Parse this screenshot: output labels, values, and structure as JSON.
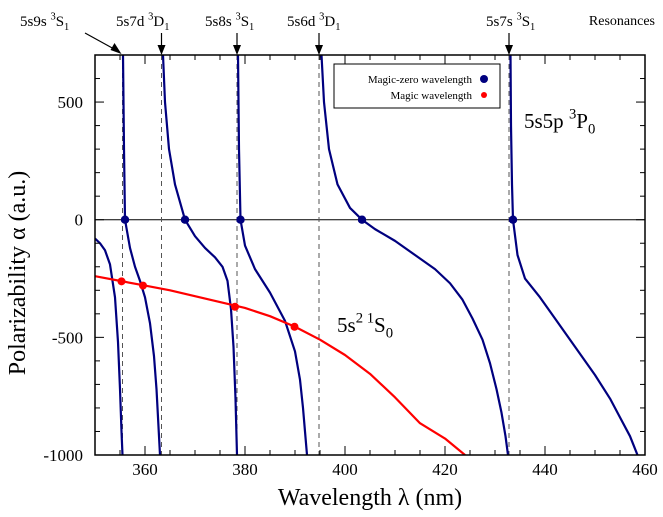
{
  "chart_data": {
    "type": "line",
    "xlabel": "Wavelength  λ (nm)",
    "ylabel": "Polarizability α (a.u.)",
    "xlim": [
      350,
      460
    ],
    "ylim": [
      -1000,
      700
    ],
    "xticks": [
      360,
      380,
      400,
      420,
      440,
      460
    ],
    "yticks": [
      -1000,
      -500,
      0,
      500
    ],
    "grid": false,
    "legend_position": "top-center",
    "legend": [
      {
        "label": "Magic-zero wavelength",
        "color": "#00007f",
        "marker": "circle"
      },
      {
        "label": "Magic wavelength",
        "color": "#ff0000",
        "marker": "circle"
      }
    ],
    "resonances_label": "Resonances",
    "resonances": [
      {
        "wavelength": 355.5,
        "label": "5s9s ³S₁",
        "base": "5s9s ",
        "sup": "3",
        "letter": "S",
        "sub": "1"
      },
      {
        "wavelength": 363.3,
        "label": "5s7d ³D₁",
        "base": "5s7d ",
        "sup": "3",
        "letter": "D",
        "sub": "1"
      },
      {
        "wavelength": 378.4,
        "label": "5s8s ³S₁",
        "base": "5s8s ",
        "sup": "3",
        "letter": "S",
        "sub": "1"
      },
      {
        "wavelength": 394.8,
        "label": "5s6d ³D₁",
        "base": "5s6d ",
        "sup": "3",
        "letter": "D",
        "sub": "1"
      },
      {
        "wavelength": 432.8,
        "label": "5s7s ³S₁",
        "base": "5s7s ",
        "sup": "3",
        "letter": "S",
        "sub": "1"
      }
    ],
    "series": [
      {
        "name": "5s5p ³P₀",
        "label_parts": {
          "base": "5s5p ",
          "sup": "3",
          "letter": "P",
          "sub": "0"
        },
        "color": "#00007f",
        "segments": [
          {
            "x": [
              350,
              351,
              352,
              353,
              354,
              354.6,
              355.0,
              355.3,
              355.5
            ],
            "y": [
              -80,
              -100,
              -130,
              -190,
              -330,
              -520,
              -720,
              -900,
              -1000
            ]
          },
          {
            "x": [
              355.6,
              355.8,
              356.0,
              356.5,
              357,
              358,
              359,
              360,
              361,
              361.8,
              362.3,
              362.7,
              363.0
            ],
            "y": [
              700,
              300,
              0,
              -60,
              -120,
              -200,
              -260,
              -330,
              -440,
              -580,
              -720,
              -880,
              -1000
            ]
          },
          {
            "x": [
              363.6,
              364.0,
              364.8,
              366,
              368,
              370,
              372,
              374,
              375.5,
              376.5,
              377.2,
              377.7,
              378.1,
              378.4
            ],
            "y": [
              700,
              500,
              300,
              150,
              0,
              -70,
              -120,
              -160,
              -200,
              -260,
              -380,
              -540,
              -760,
              -1000
            ]
          },
          {
            "x": [
              378.6,
              378.8,
              379.1,
              380,
              382,
              385,
              388,
              390,
              391,
              391.6,
              392.0,
              392.4
            ],
            "y": [
              700,
              300,
              0,
              -110,
              -210,
              -310,
              -430,
              -560,
              -680,
              -800,
              -900,
              -1000
            ]
          },
          {
            "x": [
              395.3,
              395.8,
              396.8,
              398.5,
              401,
              403.4,
              406,
              410,
              414,
              418,
              421,
              423.5,
              425.5,
              427.5,
              429,
              430.3,
              431.3,
              432.1,
              432.6
            ],
            "y": [
              700,
              500,
              300,
              150,
              50,
              0,
              -40,
              -90,
              -150,
              -210,
              -270,
              -340,
              -420,
              -510,
              -610,
              -720,
              -820,
              -920,
              -1000
            ]
          },
          {
            "x": [
              433.1,
              433.2,
              433.4,
              433.6,
              434.5,
              436,
              439,
              442,
              446,
              450,
              453,
              455,
              457,
              458.5
            ],
            "y": [
              700,
              400,
              150,
              0,
              -150,
              -250,
              -330,
              -420,
              -540,
              -660,
              -760,
              -840,
              -920,
              -1000
            ]
          }
        ]
      },
      {
        "name": "5s² ¹S₀",
        "label_parts": {
          "base": "5s",
          "sup": "2 1",
          "letter": "S",
          "sub": "0"
        },
        "color": "#ff0000",
        "segments": [
          {
            "x": [
              350,
              355,
              360,
              365,
              370,
              375,
              380,
              385,
              390,
              395,
              400,
              405,
              410,
              415,
              420,
              424
            ],
            "y": [
              -240,
              -260,
              -280,
              -300,
              -325,
              -350,
              -375,
              -410,
              -455,
              -510,
              -575,
              -655,
              -755,
              -865,
              -930,
              -1000
            ]
          }
        ]
      }
    ],
    "magic_zero_points": {
      "x": [
        356.0,
        368.0,
        379.1,
        403.4,
        433.6
      ],
      "y": [
        0,
        0,
        0,
        0,
        0
      ]
    },
    "magic_points": {
      "x": [
        355.3,
        359.6,
        378.0,
        389.9
      ],
      "y": [
        -262,
        -280,
        -370,
        -455
      ]
    }
  }
}
